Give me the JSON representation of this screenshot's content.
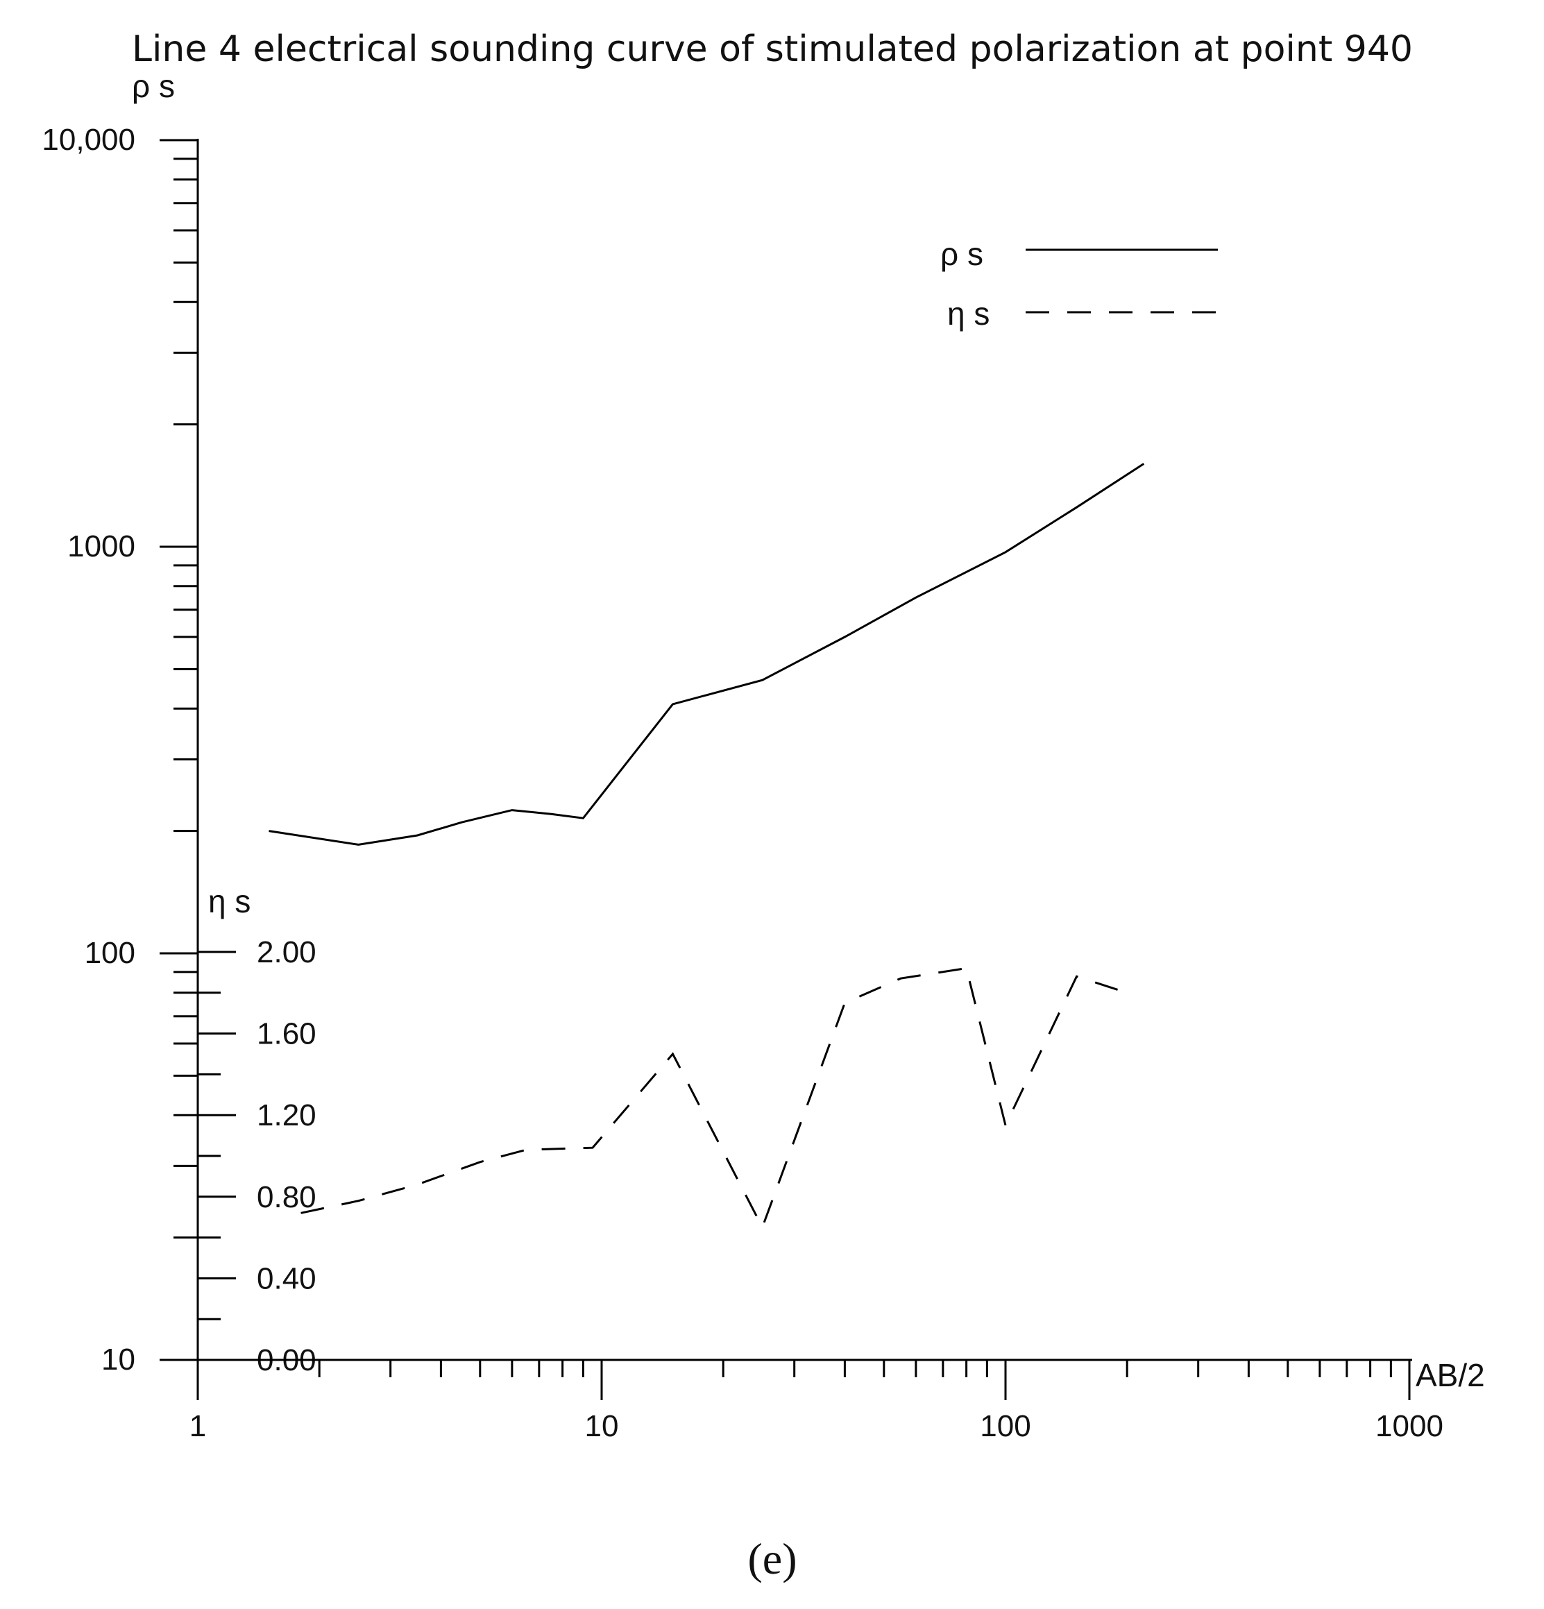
{
  "chart_data": {
    "type": "line",
    "title": "Line 4 electrical sounding curve of stimulated polarization at point 940",
    "xlabel": "AB/2",
    "x_scale": "log",
    "xlim": [
      1,
      1000
    ],
    "x_tick_labels": [
      "1",
      "10",
      "100",
      "1000"
    ],
    "y_axes": [
      {
        "id": "rho",
        "label": "ρ s",
        "scale": "log",
        "ylim": [
          10,
          10000
        ],
        "tick_labels": [
          "10",
          "100",
          "1000",
          "10,000"
        ]
      },
      {
        "id": "eta",
        "label": "η s",
        "scale": "linear",
        "ylim": [
          0,
          2
        ],
        "tick_labels": [
          "0.00",
          "0.40",
          "0.80",
          "1.20",
          "1.60",
          "2.00"
        ]
      }
    ],
    "legend": {
      "position": "top-right",
      "entries": [
        {
          "label": "ρ s",
          "style": "solid"
        },
        {
          "label": "η s",
          "style": "dashed"
        }
      ]
    },
    "series": [
      {
        "name": "ρ s",
        "axis": "rho",
        "style": "solid",
        "x": [
          1.5,
          2.5,
          3.5,
          4.5,
          6,
          7.5,
          9,
          15,
          25,
          40,
          60,
          100,
          150,
          220
        ],
        "y": [
          200,
          185,
          195,
          210,
          225,
          220,
          215,
          410,
          470,
          600,
          750,
          970,
          1250,
          1600
        ]
      },
      {
        "name": "η s",
        "axis": "eta",
        "style": "dashed",
        "x": [
          1.8,
          2.5,
          3.5,
          5,
          6.5,
          9.5,
          15,
          25,
          40,
          55,
          80,
          100,
          150,
          200
        ],
        "y": [
          0.72,
          0.78,
          0.86,
          0.97,
          1.03,
          1.04,
          1.5,
          0.65,
          1.75,
          1.87,
          1.92,
          1.15,
          1.88,
          1.8
        ]
      }
    ]
  },
  "caption": "(e)"
}
